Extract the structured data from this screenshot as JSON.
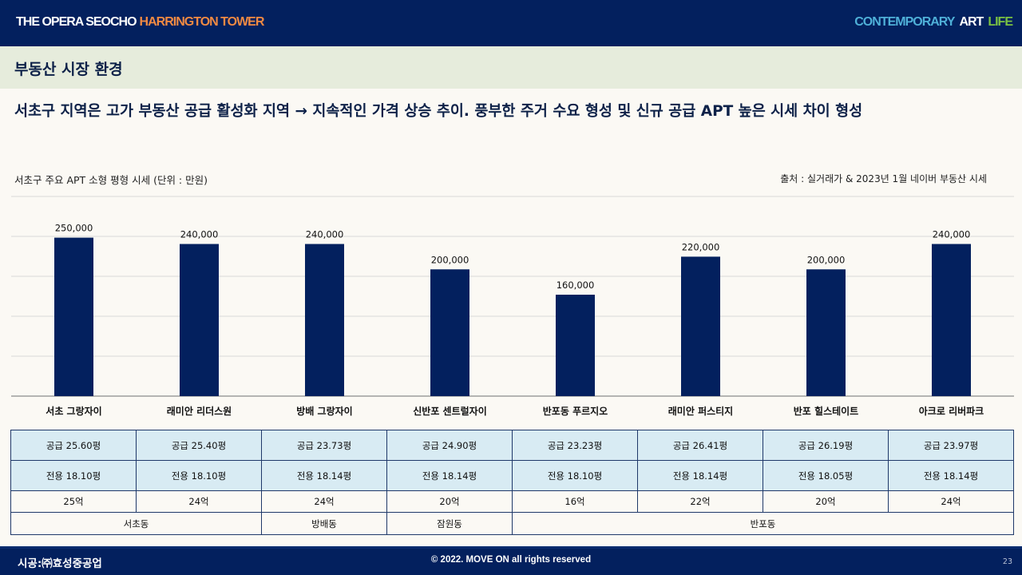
{
  "header": {
    "brand": "THE OPERA SEOCHO",
    "brand_accent": "HARRINGTON TOWER",
    "tagline_1": "CONTEMPORARY",
    "tagline_2": "ART",
    "tagline_3": "LIFE"
  },
  "section": {
    "title": "부동산 시장 환경"
  },
  "headline": "서초구 지역은 고가 부동산 공급 활성화 지역 → 지속적인 가격 상승 추이. 풍부한 주거 수요 형성 및 신규 공급 APT 높은 시세 차이 형성",
  "chart_data": {
    "type": "bar",
    "title": "서초구 주요 APT 소형 평형 시세 (단위 : 만원)",
    "source": "출처 : 실거래가  & 2023년 1월 네이버 부동산 시세",
    "categories": [
      "서초 그랑자이",
      "래미안 리더스원",
      "방배 그랑자이",
      "신반포 센트럴자이",
      "반포동 푸르지오",
      "래미안 퍼스티지",
      "반포 힐스테이트",
      "아크로 리버파크"
    ],
    "values": [
      250000,
      240000,
      240000,
      200000,
      160000,
      220000,
      200000,
      240000
    ],
    "value_labels": [
      "250,000",
      "240,000",
      "240,000",
      "200,000",
      "160,000",
      "220,000",
      "200,000",
      "240,000"
    ],
    "ylim": [
      0,
      315000
    ],
    "gridlines": [
      0,
      63000,
      126000,
      189000,
      252000,
      315000
    ],
    "bar_color": "#03205e",
    "xlabel": "",
    "ylabel": ""
  },
  "table": {
    "supply": [
      "공급 25.60평",
      "공급 25.40평",
      "공급 23.73평",
      "공급 24.90평",
      "공급 23.23평",
      "공급 26.41평",
      "공급 26.19평",
      "공급 23.97평"
    ],
    "exclusive": [
      "전용 18.10평",
      "전용 18.10평",
      "전용 18.14평",
      "전용 18.14평",
      "전용 18.10평",
      "전용 18.14평",
      "전용 18.05평",
      "전용 18.14평"
    ],
    "price": [
      "25억",
      "24억",
      "24억",
      "20억",
      "16억",
      "22억",
      "20억",
      "24억"
    ],
    "districts": [
      "서초동",
      "방배동",
      "잠원동",
      "반포동"
    ]
  },
  "footer": {
    "builder": "시공:㈜효성중공업",
    "copyright": "© 2022. MOVE ON all rights reserved",
    "page": "23"
  }
}
